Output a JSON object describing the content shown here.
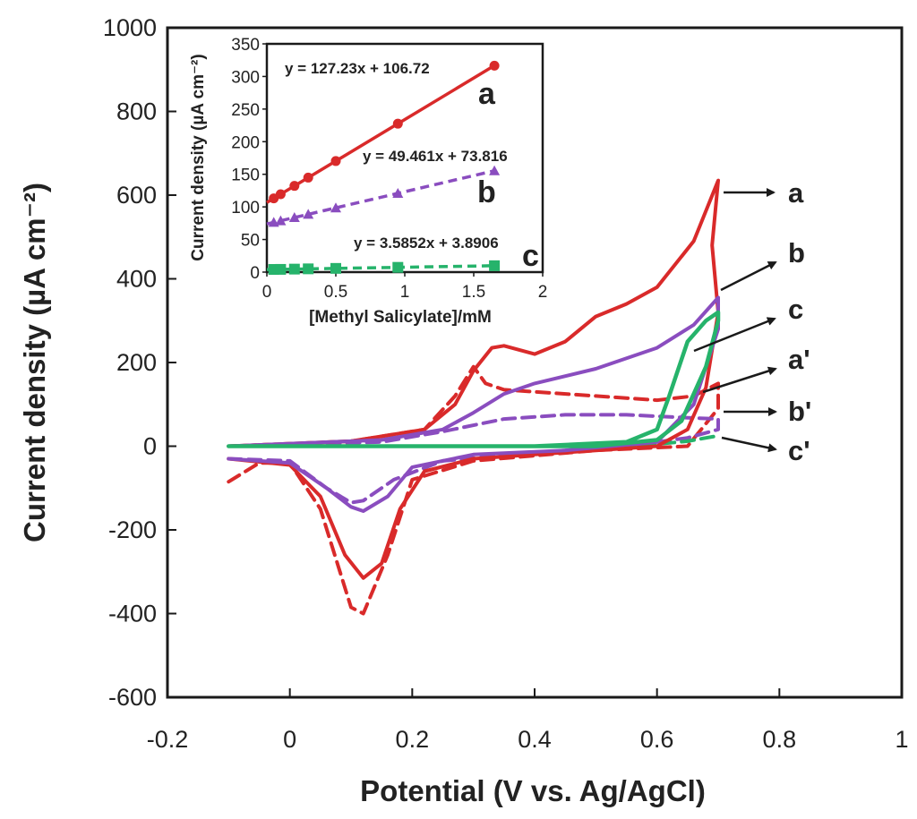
{
  "colors": {
    "a": "#d92a2a",
    "b": "#8a4dbf",
    "c": "#26b36b",
    "frame": "#1a1a1a"
  },
  "chart_data": [
    {
      "type": "line",
      "xlabel": "Potential (V vs. Ag/AgCl)",
      "ylabel": "Current density (µA cm⁻²)",
      "xlim": [
        -0.2,
        1.0
      ],
      "ylim": [
        -600,
        1000
      ],
      "x_ticks": [
        "-0.2",
        "0",
        "0.2",
        "0.4",
        "0.6",
        "0.8",
        "1"
      ],
      "y_ticks": [
        "1000",
        "800",
        "600",
        "400",
        "200",
        "0",
        "-200",
        "-400",
        "-600"
      ],
      "series": [
        {
          "name": "a",
          "color": "a",
          "dashed": false,
          "points": [
            [
              -0.1,
              -30
            ],
            [
              0,
              -45
            ],
            [
              0.05,
              -120
            ],
            [
              0.09,
              -260
            ],
            [
              0.12,
              -315
            ],
            [
              0.15,
              -280
            ],
            [
              0.18,
              -150
            ],
            [
              0.22,
              -60
            ],
            [
              0.3,
              -30
            ],
            [
              0.4,
              -20
            ],
            [
              0.5,
              -10
            ],
            [
              0.6,
              0
            ],
            [
              0.65,
              40
            ],
            [
              0.68,
              140
            ],
            [
              0.7,
              320
            ],
            [
              0.69,
              480
            ],
            [
              0.7,
              635
            ],
            [
              0.66,
              490
            ],
            [
              0.6,
              380
            ],
            [
              0.55,
              340
            ],
            [
              0.5,
              310
            ],
            [
              0.45,
              250
            ],
            [
              0.4,
              220
            ],
            [
              0.35,
              240
            ],
            [
              0.33,
              235
            ],
            [
              0.3,
              180
            ],
            [
              0.27,
              100
            ],
            [
              0.22,
              40
            ],
            [
              0.1,
              12
            ],
            [
              -0.1,
              0
            ]
          ]
        },
        {
          "name": "b",
          "color": "b",
          "dashed": false,
          "points": [
            [
              -0.1,
              -30
            ],
            [
              0,
              -40
            ],
            [
              0.06,
              -100
            ],
            [
              0.1,
              -145
            ],
            [
              0.12,
              -155
            ],
            [
              0.16,
              -120
            ],
            [
              0.2,
              -50
            ],
            [
              0.3,
              -20
            ],
            [
              0.45,
              -10
            ],
            [
              0.6,
              10
            ],
            [
              0.66,
              100
            ],
            [
              0.7,
              280
            ],
            [
              0.7,
              355
            ],
            [
              0.66,
              290
            ],
            [
              0.6,
              235
            ],
            [
              0.5,
              185
            ],
            [
              0.4,
              150
            ],
            [
              0.35,
              125
            ],
            [
              0.3,
              80
            ],
            [
              0.25,
              40
            ],
            [
              0.15,
              15
            ],
            [
              -0.1,
              0
            ]
          ]
        },
        {
          "name": "c",
          "color": "c",
          "dashed": false,
          "points": [
            [
              -0.1,
              0
            ],
            [
              0.1,
              0
            ],
            [
              0.3,
              0
            ],
            [
              0.5,
              0
            ],
            [
              0.6,
              15
            ],
            [
              0.64,
              60
            ],
            [
              0.68,
              190
            ],
            [
              0.7,
              300
            ],
            [
              0.7,
              320
            ],
            [
              0.68,
              300
            ],
            [
              0.65,
              250
            ],
            [
              0.62,
              120
            ],
            [
              0.6,
              40
            ],
            [
              0.55,
              10
            ],
            [
              0.4,
              0
            ],
            [
              0.2,
              0
            ],
            [
              -0.1,
              0
            ]
          ]
        },
        {
          "name": "a'",
          "color": "a",
          "dashed": true,
          "points": [
            [
              -0.1,
              -85
            ],
            [
              -0.05,
              -40
            ],
            [
              0,
              -40
            ],
            [
              0.05,
              -150
            ],
            [
              0.1,
              -385
            ],
            [
              0.12,
              -400
            ],
            [
              0.16,
              -260
            ],
            [
              0.2,
              -80
            ],
            [
              0.3,
              -35
            ],
            [
              0.5,
              -10
            ],
            [
              0.65,
              0
            ],
            [
              0.7,
              90
            ],
            [
              0.7,
              150
            ],
            [
              0.66,
              120
            ],
            [
              0.6,
              110
            ],
            [
              0.5,
              120
            ],
            [
              0.4,
              130
            ],
            [
              0.35,
              135
            ],
            [
              0.32,
              150
            ],
            [
              0.3,
              190
            ],
            [
              0.27,
              120
            ],
            [
              0.22,
              40
            ],
            [
              0.1,
              12
            ],
            [
              -0.1,
              0
            ]
          ]
        },
        {
          "name": "b'",
          "color": "b",
          "dashed": true,
          "points": [
            [
              -0.1,
              -30
            ],
            [
              0,
              -35
            ],
            [
              0.06,
              -100
            ],
            [
              0.1,
              -135
            ],
            [
              0.12,
              -130
            ],
            [
              0.17,
              -80
            ],
            [
              0.25,
              -35
            ],
            [
              0.4,
              -15
            ],
            [
              0.55,
              0
            ],
            [
              0.65,
              20
            ],
            [
              0.7,
              40
            ],
            [
              0.7,
              65
            ],
            [
              0.65,
              68
            ],
            [
              0.55,
              75
            ],
            [
              0.45,
              75
            ],
            [
              0.35,
              65
            ],
            [
              0.25,
              35
            ],
            [
              0.15,
              10
            ],
            [
              -0.1,
              0
            ]
          ]
        },
        {
          "name": "c'",
          "color": "c",
          "dashed": true,
          "points": [
            [
              -0.1,
              0
            ],
            [
              0.2,
              0
            ],
            [
              0.4,
              0
            ],
            [
              0.6,
              5
            ],
            [
              0.65,
              12
            ],
            [
              0.7,
              25
            ]
          ]
        }
      ],
      "curve_labels": [
        "a",
        "b",
        "c",
        "a'",
        "b'",
        "c'"
      ]
    },
    {
      "type": "scatter",
      "inset": true,
      "xlabel": "[Methyl Salicylate]/mM",
      "ylabel": "Current density (µA cm⁻²)",
      "xlim": [
        0,
        2
      ],
      "ylim": [
        0,
        350
      ],
      "x_ticks": [
        "0",
        "0.5",
        "1",
        "1.5",
        "2"
      ],
      "y_ticks": [
        "350",
        "300",
        "250",
        "200",
        "150",
        "100",
        "50",
        "0"
      ],
      "series": [
        {
          "name": "a",
          "color": "a",
          "marker": "circle",
          "dashed": false,
          "x": [
            0.05,
            0.1,
            0.2,
            0.3,
            0.5,
            0.95,
            1.65
          ],
          "y": [
            113.1,
            119.4,
            132.2,
            144.9,
            170.3,
            227.6,
            316.6
          ],
          "equation": "y = 127.23x + 106.72",
          "fit": [
            127.23,
            106.72
          ]
        },
        {
          "name": "b",
          "color": "b",
          "marker": "triangle",
          "dashed": true,
          "x": [
            0.05,
            0.1,
            0.2,
            0.3,
            0.5,
            0.95,
            1.65
          ],
          "y": [
            76.3,
            78.8,
            83.7,
            88.7,
            98.5,
            120.8,
            155.4
          ],
          "equation": "y = 49.461x + 73.816",
          "fit": [
            49.461,
            73.816
          ]
        },
        {
          "name": "c",
          "color": "c",
          "marker": "square",
          "dashed": true,
          "x": [
            0.05,
            0.1,
            0.2,
            0.3,
            0.5,
            0.95,
            1.65
          ],
          "y": [
            4.1,
            4.2,
            4.6,
            5.0,
            5.7,
            7.3,
            9.8
          ],
          "equation": "y = 3.5852x + 3.8906",
          "fit": [
            3.5852,
            3.8906
          ]
        }
      ]
    }
  ]
}
